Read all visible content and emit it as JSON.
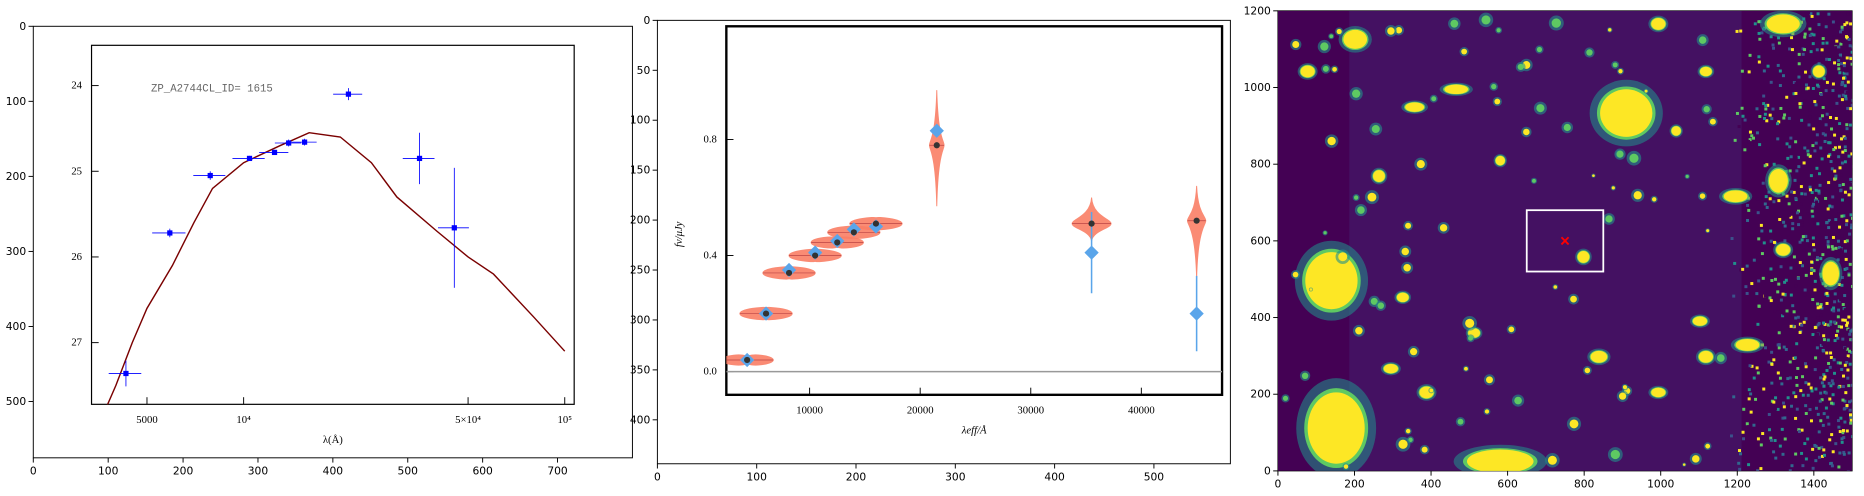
{
  "chart_data": [
    {
      "type": "image",
      "xlim": [
        0,
        800
      ],
      "ylim": [
        575,
        0
      ],
      "xticks": [
        0,
        100,
        200,
        300,
        400,
        500,
        600,
        700
      ],
      "yticks": [
        0,
        100,
        200,
        300,
        400,
        500
      ]
    },
    {
      "type": "line",
      "title": "ZP_A2744CL_ID= 1615",
      "x_label": "λ(Å)",
      "log_x": true,
      "xlim": [
        3360,
        107000
      ],
      "ylim": [
        27.72,
        23.53
      ],
      "xticks": [
        5000,
        {
          "value": 10000,
          "label": "10⁴"
        },
        {
          "value": 50000,
          "label": "5×10⁴"
        },
        {
          "value": 100000,
          "label": "10⁵"
        }
      ],
      "yticks": [
        24,
        25,
        26,
        27
      ],
      "series": [
        {
          "color": "#7a0000",
          "x": [
            3500,
            4000,
            4500,
            5000,
            6000,
            7000,
            8000,
            10000,
            13000,
            16000,
            20000,
            25000,
            30000,
            40000,
            50000,
            60000,
            80000,
            100000
          ],
          "values": [
            28.0,
            27.5,
            27.0,
            26.6,
            26.1,
            25.6,
            25.2,
            24.9,
            24.7,
            24.55,
            24.6,
            24.9,
            25.3,
            25.7,
            26.0,
            26.2,
            26.7,
            27.1
          ]
        },
        {
          "color": "#0000ff",
          "x": [
            4300,
            5890,
            7870,
            10430,
            12480,
            13810,
            15480,
            21200,
            35300,
            45300
          ],
          "values": [
            27.36,
            25.72,
            25.05,
            24.85,
            24.78,
            24.67,
            24.66,
            24.1,
            24.85,
            25.66
          ],
          "errors": [
            0.15,
            0.05,
            0.05,
            0.03,
            0.03,
            0.04,
            0.04,
            0.07,
            0.3,
            0.7
          ],
          "x_errors": [
            500,
            700,
            900,
            1200,
            1300,
            1300,
            1400,
            2200,
            4000,
            5000
          ]
        }
      ]
    },
    {
      "type": "image",
      "xlim": [
        0,
        577
      ],
      "ylim": [
        444,
        0
      ],
      "xticks": [
        0,
        100,
        200,
        300,
        400,
        500
      ],
      "yticks": [
        0,
        50,
        100,
        150,
        200,
        250,
        300,
        350,
        400
      ]
    },
    {
      "type": "scatter",
      "x_label": "λeff/Å",
      "y_label": "fν/μJy",
      "hline": 0,
      "hline_color": "#999999",
      "xlim": [
        2470,
        47300
      ],
      "ylim": [
        -0.08,
        1.19
      ],
      "xticks": [
        10000,
        20000,
        30000,
        40000
      ],
      "yticks": [
        {
          "value": 0,
          "label": "0.0"
        },
        0.4,
        0.8
      ],
      "x": [
        4350,
        6060,
        8140,
        10500,
        12500,
        14000,
        16000,
        21500,
        35500,
        45000
      ],
      "series": [
        {
          "color": "#fa7f66",
          "marker": "violin",
          "values": [
            0.04,
            0.2,
            0.34,
            0.4,
            0.445,
            0.48,
            0.51,
            0.78,
            0.51,
            0.52
          ],
          "lo": [
            0.03,
            0.18,
            0.32,
            0.38,
            0.43,
            0.46,
            0.49,
            0.57,
            0.45,
            0.32
          ],
          "hi": [
            0.05,
            0.22,
            0.36,
            0.42,
            0.46,
            0.5,
            0.53,
            0.97,
            0.6,
            0.64
          ]
        },
        {
          "color": "#5aa5ea",
          "marker": "diamond",
          "values": [
            0.04,
            0.2,
            0.35,
            0.41,
            0.45,
            0.49,
            0.5,
            0.83,
            0.41,
            0.2
          ],
          "errors": [
            0.01,
            0.01,
            0.01,
            0.01,
            0.01,
            0.01,
            0.01,
            0.02,
            0.14,
            0.13
          ]
        },
        {
          "color": "#333333",
          "marker": "dot",
          "values": [
            0.04,
            0.2,
            0.34,
            0.4,
            0.445,
            0.48,
            0.51,
            0.78,
            0.51,
            0.52
          ]
        }
      ]
    },
    {
      "type": "image",
      "colormap": "viridis",
      "xlim": [
        0,
        1500
      ],
      "ylim": [
        0,
        1200
      ],
      "xticks": [
        0,
        200,
        400,
        600,
        800,
        1000,
        1200,
        1400
      ],
      "yticks": [
        0,
        200,
        400,
        600,
        800,
        1000,
        1200
      ],
      "cutout": {
        "x": [
          650,
          850
        ],
        "y": [
          520,
          680
        ],
        "color": "#ffffff"
      },
      "target": {
        "x": 750,
        "y": 600,
        "color": "#ff0000"
      }
    }
  ]
}
